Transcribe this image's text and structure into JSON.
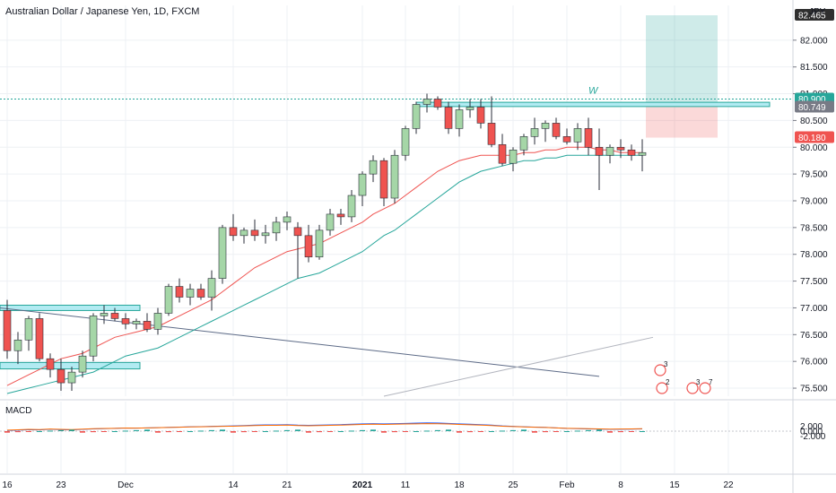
{
  "chart_data": {
    "type": "candlestick",
    "title": "Australian Dollar / Japanese Yen, 1D, FXCM",
    "currency": "JPY",
    "y_range": [
      75.35,
      82.65
    ],
    "y_ticks": [
      "82.000",
      "81.500",
      "81.000",
      "80.500",
      "80.000",
      "79.500",
      "79.000",
      "78.500",
      "78.000",
      "77.500",
      "77.000",
      "76.500",
      "76.000",
      "75.500"
    ],
    "x_ticks": [
      {
        "label": "16",
        "i": 0
      },
      {
        "label": "23",
        "i": 5
      },
      {
        "label": "Dec",
        "i": 11
      },
      {
        "label": "14",
        "i": 21
      },
      {
        "label": "21",
        "i": 26
      },
      {
        "label": "2021",
        "i": 33
      },
      {
        "label": "11",
        "i": 37
      },
      {
        "label": "18",
        "i": 42
      },
      {
        "label": "25",
        "i": 47
      },
      {
        "label": "Feb",
        "i": 52
      },
      {
        "label": "8",
        "i": 57
      },
      {
        "label": "15",
        "i": 62
      },
      {
        "label": "22",
        "i": 67
      }
    ],
    "candles": [
      [
        76.95,
        77.15,
        76.05,
        76.2
      ],
      [
        76.2,
        76.55,
        75.95,
        76.4
      ],
      [
        76.4,
        76.85,
        76.2,
        76.8
      ],
      [
        76.8,
        76.9,
        76.0,
        76.05
      ],
      [
        76.05,
        76.15,
        75.7,
        75.85
      ],
      [
        75.85,
        76.05,
        75.45,
        75.6
      ],
      [
        75.6,
        75.9,
        75.45,
        75.8
      ],
      [
        75.8,
        76.2,
        75.7,
        76.1
      ],
      [
        76.1,
        76.9,
        76.0,
        76.85
      ],
      [
        76.85,
        77.05,
        76.7,
        76.9
      ],
      [
        76.9,
        77.0,
        76.75,
        76.8
      ],
      [
        76.8,
        76.9,
        76.6,
        76.7
      ],
      [
        76.7,
        76.8,
        76.6,
        76.75
      ],
      [
        76.75,
        76.9,
        76.55,
        76.6
      ],
      [
        76.6,
        77.0,
        76.5,
        76.9
      ],
      [
        76.9,
        77.45,
        76.85,
        77.4
      ],
      [
        77.4,
        77.55,
        77.1,
        77.2
      ],
      [
        77.2,
        77.45,
        77.05,
        77.35
      ],
      [
        77.35,
        77.45,
        77.15,
        77.2
      ],
      [
        77.2,
        77.7,
        76.95,
        77.55
      ],
      [
        77.55,
        78.55,
        77.45,
        78.5
      ],
      [
        78.5,
        78.75,
        78.25,
        78.35
      ],
      [
        78.35,
        78.5,
        78.2,
        78.45
      ],
      [
        78.45,
        78.65,
        78.25,
        78.35
      ],
      [
        78.35,
        78.55,
        78.2,
        78.4
      ],
      [
        78.4,
        78.7,
        78.25,
        78.6
      ],
      [
        78.6,
        78.8,
        78.45,
        78.7
      ],
      [
        78.5,
        78.6,
        77.55,
        78.35
      ],
      [
        78.35,
        78.55,
        77.85,
        77.95
      ],
      [
        77.95,
        78.55,
        77.9,
        78.45
      ],
      [
        78.45,
        78.85,
        78.35,
        78.75
      ],
      [
        78.75,
        78.85,
        78.55,
        78.7
      ],
      [
        78.7,
        79.2,
        78.6,
        79.1
      ],
      [
        79.1,
        79.55,
        78.9,
        79.5
      ],
      [
        79.5,
        79.85,
        79.35,
        79.75
      ],
      [
        79.75,
        79.8,
        78.9,
        79.05
      ],
      [
        79.05,
        79.95,
        78.95,
        79.85
      ],
      [
        79.85,
        80.4,
        79.75,
        80.35
      ],
      [
        80.35,
        80.85,
        80.25,
        80.8
      ],
      [
        80.8,
        81.0,
        80.65,
        80.9
      ],
      [
        80.9,
        80.95,
        80.7,
        80.75
      ],
      [
        80.75,
        80.85,
        80.25,
        80.35
      ],
      [
        80.35,
        80.8,
        80.2,
        80.7
      ],
      [
        80.7,
        80.9,
        80.55,
        80.75
      ],
      [
        80.75,
        80.9,
        80.35,
        80.45
      ],
      [
        80.45,
        80.95,
        80.0,
        80.05
      ],
      [
        80.05,
        80.25,
        79.65,
        79.7
      ],
      [
        79.7,
        80.0,
        79.55,
        79.95
      ],
      [
        79.95,
        80.25,
        79.85,
        80.2
      ],
      [
        80.2,
        80.55,
        80.05,
        80.35
      ],
      [
        80.35,
        80.5,
        80.1,
        80.45
      ],
      [
        80.45,
        80.55,
        80.15,
        80.2
      ],
      [
        80.2,
        80.35,
        80.05,
        80.1
      ],
      [
        80.1,
        80.45,
        79.95,
        80.35
      ],
      [
        80.35,
        80.55,
        79.85,
        80.0
      ],
      [
        80.0,
        80.35,
        79.2,
        79.85
      ],
      [
        79.85,
        80.05,
        79.7,
        80.0
      ],
      [
        80.0,
        80.15,
        79.8,
        79.95
      ],
      [
        79.95,
        80.05,
        79.75,
        79.85
      ],
      [
        79.85,
        80.15,
        79.55,
        79.9
      ]
    ],
    "series": [
      {
        "name": "EMA",
        "values": [
          75.55,
          75.65,
          75.75,
          75.85,
          75.95,
          76.05,
          76.1,
          76.15,
          76.25,
          76.35,
          76.45,
          76.5,
          76.55,
          76.6,
          76.65,
          76.75,
          76.85,
          76.95,
          77.05,
          77.15,
          77.3,
          77.45,
          77.6,
          77.75,
          77.85,
          77.95,
          78.05,
          78.1,
          78.15,
          78.2,
          78.3,
          78.4,
          78.5,
          78.6,
          78.75,
          78.85,
          78.95,
          79.1,
          79.25,
          79.4,
          79.55,
          79.65,
          79.75,
          79.8,
          79.85,
          79.85,
          79.85,
          79.85,
          79.9,
          79.9,
          79.95,
          79.95,
          80.0,
          80.0,
          80.0,
          79.95,
          79.95,
          79.9,
          79.9,
          79.9
        ]
      },
      {
        "name": "EMA",
        "values": [
          75.4,
          75.45,
          75.5,
          75.55,
          75.6,
          75.65,
          75.7,
          75.75,
          75.8,
          75.9,
          76.0,
          76.1,
          76.15,
          76.2,
          76.25,
          76.35,
          76.45,
          76.55,
          76.65,
          76.75,
          76.85,
          76.95,
          77.05,
          77.15,
          77.25,
          77.35,
          77.45,
          77.55,
          77.6,
          77.65,
          77.75,
          77.85,
          77.95,
          78.05,
          78.2,
          78.35,
          78.45,
          78.6,
          78.75,
          78.9,
          79.05,
          79.2,
          79.35,
          79.45,
          79.55,
          79.6,
          79.65,
          79.7,
          79.75,
          79.75,
          79.8,
          79.8,
          79.85,
          79.85,
          79.85,
          79.85,
          79.85,
          79.85,
          79.85,
          79.85
        ]
      }
    ],
    "macd": {
      "label": "MACD",
      "y_ticks": [
        "2.000",
        "0.000",
        "-2.000"
      ]
    },
    "price_labels": [
      {
        "text": "82.465",
        "value": 82.465,
        "color": "#2f2f2f"
      },
      {
        "text": "80.900",
        "value": 80.9,
        "color": "#26a69a"
      },
      {
        "text": "80.749",
        "value": 80.749,
        "color": "#787b86"
      },
      {
        "text": "80.180",
        "value": 80.18,
        "color": "#ef5350"
      }
    ],
    "annotations": [
      {
        "text": "W",
        "i": 59
      },
      {
        "text": "3",
        "badge": true
      },
      {
        "text": "2",
        "badge": true
      },
      {
        "text": "3",
        "badge": true
      },
      {
        "text": "7",
        "badge": true
      }
    ],
    "colors": {
      "up": "#26a69a",
      "down": "#ef5350",
      "ema_fast": "#ef5350",
      "ema_slow": "#26a69a",
      "grid": "#eef0f4"
    }
  }
}
